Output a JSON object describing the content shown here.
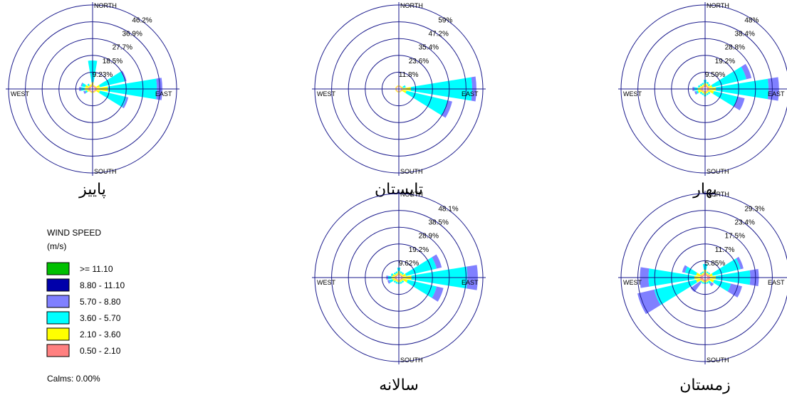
{
  "chart_data": [
    {
      "type": "wind-rose",
      "title": "پاییز",
      "directions": [
        "N",
        "NNE",
        "NE",
        "ENE",
        "E",
        "ESE",
        "SE",
        "SSE",
        "S",
        "SSW",
        "SW",
        "WSW",
        "W",
        "WNW",
        "NW",
        "NNW"
      ],
      "ring_labels": [
        "9.23%",
        "18.5%",
        "27.7%",
        "36.9%",
        "46.2%"
      ],
      "ring_max_percent": 46.2,
      "axis_labels": {
        "north": "NORTH",
        "south": "SOUTH",
        "east": "EAST",
        "west": "WEST"
      },
      "series": [
        {
          "name": "0.50 - 2.10",
          "values": [
            1,
            0.5,
            0.5,
            1,
            1.2,
            1,
            0.5,
            0.5,
            0.5,
            0.5,
            0.5,
            1,
            1.2,
            1,
            0.5,
            0.5
          ]
        },
        {
          "name": "2.10 - 3.60",
          "values": [
            1.5,
            0.5,
            0.5,
            2,
            6,
            2,
            0.5,
            0.5,
            0.5,
            0.5,
            0.5,
            1,
            2,
            2,
            1,
            1
          ]
        },
        {
          "name": "3.60 - 5.70",
          "values": [
            12,
            0,
            0,
            14,
            27,
            15,
            0,
            0,
            0,
            0,
            0,
            1,
            2,
            2,
            1,
            0
          ]
        },
        {
          "name": "5.70 - 8.80",
          "values": [
            0,
            0,
            0,
            1,
            3,
            1,
            0,
            0,
            0,
            0,
            0,
            1,
            1,
            0.5,
            0,
            0
          ]
        }
      ]
    },
    {
      "type": "wind-rose",
      "title": "تابستان",
      "directions": [
        "N",
        "NNE",
        "NE",
        "ENE",
        "E",
        "ESE",
        "SE",
        "SSE",
        "S",
        "SSW",
        "SW",
        "WSW",
        "W",
        "WNW",
        "NW",
        "NNW"
      ],
      "ring_labels": [
        "11.8%",
        "23.6%",
        "35.4%",
        "47.2%",
        "59%"
      ],
      "ring_max_percent": 59,
      "axis_labels": {
        "north": "NORTH",
        "south": "SOUTH",
        "east": "EAST",
        "west": "WEST"
      },
      "series": [
        {
          "name": "0.50 - 2.10",
          "values": [
            0.5,
            0.5,
            0.5,
            0.5,
            1,
            1,
            0.5,
            0.5,
            0.5,
            0.5,
            0.5,
            0.5,
            0.5,
            0.5,
            0.5,
            0.5
          ]
        },
        {
          "name": "2.10 - 3.60",
          "values": [
            0.5,
            0.5,
            0.5,
            1,
            6,
            3,
            0.5,
            0.5,
            0.5,
            0.5,
            0.5,
            0.5,
            0.5,
            0.5,
            0.5,
            0.5
          ]
        },
        {
          "name": "3.60 - 5.70",
          "values": [
            0,
            0,
            0,
            2,
            43,
            30,
            0,
            0,
            0,
            0,
            0,
            0,
            0,
            0,
            0,
            0
          ]
        },
        {
          "name": "5.70 - 8.80",
          "values": [
            0,
            0,
            0,
            0,
            3,
            3,
            0,
            0,
            0,
            0,
            0,
            0,
            0,
            0,
            0,
            0
          ]
        }
      ]
    },
    {
      "type": "wind-rose",
      "title": "بهار",
      "directions": [
        "N",
        "NNE",
        "NE",
        "ENE",
        "E",
        "ESE",
        "SE",
        "SSE",
        "S",
        "SSW",
        "SW",
        "WSW",
        "W",
        "WNW",
        "NW",
        "NNW"
      ],
      "ring_labels": [
        "9.59%",
        "19.2%",
        "28.8%",
        "38.4%",
        "48%"
      ],
      "ring_max_percent": 48,
      "axis_labels": {
        "north": "NORTH",
        "south": "SOUTH",
        "east": "EAST",
        "west": "WEST"
      },
      "series": [
        {
          "name": "0.50 - 2.10",
          "values": [
            1,
            1,
            0.5,
            1,
            1,
            1,
            0.5,
            0.5,
            1,
            0.5,
            0.5,
            1,
            1,
            1,
            0.5,
            0.5
          ]
        },
        {
          "name": "2.10 - 3.60",
          "values": [
            1,
            1,
            1,
            2,
            4,
            3,
            1,
            1,
            1,
            1,
            1,
            2,
            2,
            1,
            1,
            1
          ]
        },
        {
          "name": "3.60 - 5.70",
          "values": [
            2,
            1,
            1,
            20,
            30,
            14,
            1,
            1,
            1,
            1,
            1,
            1,
            2,
            1,
            1,
            1
          ]
        },
        {
          "name": "5.70 - 8.80",
          "values": [
            0,
            0,
            0,
            3,
            6,
            4,
            0,
            0,
            0,
            0,
            0,
            1,
            1,
            0,
            0,
            0
          ]
        }
      ]
    },
    {
      "type": "wind-rose",
      "title": "سالانه",
      "directions": [
        "N",
        "NNE",
        "NE",
        "ENE",
        "E",
        "ESE",
        "SE",
        "SSE",
        "S",
        "SSW",
        "SW",
        "WSW",
        "W",
        "WNW",
        "NW",
        "NNW"
      ],
      "ring_labels": [
        "9.62%",
        "19.2%",
        "28.9%",
        "38.5%",
        "48.1%"
      ],
      "ring_max_percent": 48.1,
      "axis_labels": {
        "north": "NORTH",
        "south": "SOUTH",
        "east": "EAST",
        "west": "WEST"
      },
      "series": [
        {
          "name": "0.50 - 2.10",
          "values": [
            1,
            0.5,
            0.5,
            1,
            1,
            1,
            0.5,
            0.5,
            0.5,
            0.5,
            0.5,
            1,
            1,
            1,
            0.5,
            0.5
          ]
        },
        {
          "name": "2.10 - 3.60",
          "values": [
            1.5,
            1,
            1,
            2,
            5,
            3,
            1,
            1,
            1,
            1,
            1,
            1.5,
            2,
            1.5,
            1,
            1
          ]
        },
        {
          "name": "3.60 - 5.70",
          "values": [
            2,
            1,
            1,
            18,
            32,
            17,
            1,
            1,
            1,
            1,
            1,
            2,
            2,
            1,
            1,
            1
          ]
        },
        {
          "name": "5.70 - 8.80",
          "values": [
            0,
            0,
            0,
            3,
            6,
            4,
            0,
            0,
            0,
            0,
            0,
            1,
            1,
            0,
            0,
            0
          ]
        }
      ]
    },
    {
      "type": "wind-rose",
      "title": "زمستان",
      "directions": [
        "N",
        "NNE",
        "NE",
        "ENE",
        "E",
        "ESE",
        "SE",
        "SSE",
        "S",
        "SSW",
        "SW",
        "WSW",
        "W",
        "WNW",
        "NW",
        "NNW"
      ],
      "ring_labels": [
        "5.85%",
        "11.7%",
        "17.5%",
        "23.4%",
        "29.3%"
      ],
      "ring_max_percent": 29.3,
      "axis_labels": {
        "north": "NORTH",
        "south": "SOUTH",
        "east": "EAST",
        "west": "WEST"
      },
      "series": [
        {
          "name": "0.50 - 2.10",
          "values": [
            1,
            0.5,
            0.5,
            1,
            1,
            1,
            0.5,
            0.5,
            0.5,
            0.5,
            0.5,
            1,
            1,
            1,
            0.5,
            0.5
          ]
        },
        {
          "name": "2.10 - 3.60",
          "values": [
            1,
            0.5,
            0.5,
            1,
            2,
            1.5,
            0.5,
            0.5,
            0.5,
            0.5,
            0.5,
            1.5,
            2,
            1.5,
            0.5,
            0.5
          ]
        },
        {
          "name": "3.60 - 5.70",
          "values": [
            2,
            0.5,
            0.5,
            10,
            12,
            6,
            1,
            0.5,
            0.5,
            0.5,
            0.5,
            15,
            16,
            4,
            0.5,
            0.5
          ]
        },
        {
          "name": "5.70 - 8.80",
          "values": [
            0,
            0,
            0,
            1,
            3,
            4,
            1,
            0,
            0,
            0,
            4,
            6,
            3,
            1,
            0,
            0
          ]
        }
      ]
    }
  ],
  "legend": {
    "title": "WIND SPEED",
    "unit": "(m/s)",
    "items": [
      {
        "label": ">= 11.10",
        "color": "#00c000"
      },
      {
        "label": "8.80 - 11.10",
        "color": "#0000aa"
      },
      {
        "label": "5.70 - 8.80",
        "color": "#8080ff"
      },
      {
        "label": "3.60 - 5.70",
        "color": "#00ffff"
      },
      {
        "label": "2.10 - 3.60",
        "color": "#ffff00"
      },
      {
        "label": "0.50 - 2.10",
        "color": "#ff8080"
      }
    ],
    "calms": "Calms: 0.00%"
  },
  "colors": {
    "ring": "#1a1a8c",
    "band_0.50_2.10": "#ff8080",
    "band_2.10_3.60": "#ffff00",
    "band_3.60_5.70": "#00ffff",
    "band_5.70_8.80": "#8080ff"
  }
}
